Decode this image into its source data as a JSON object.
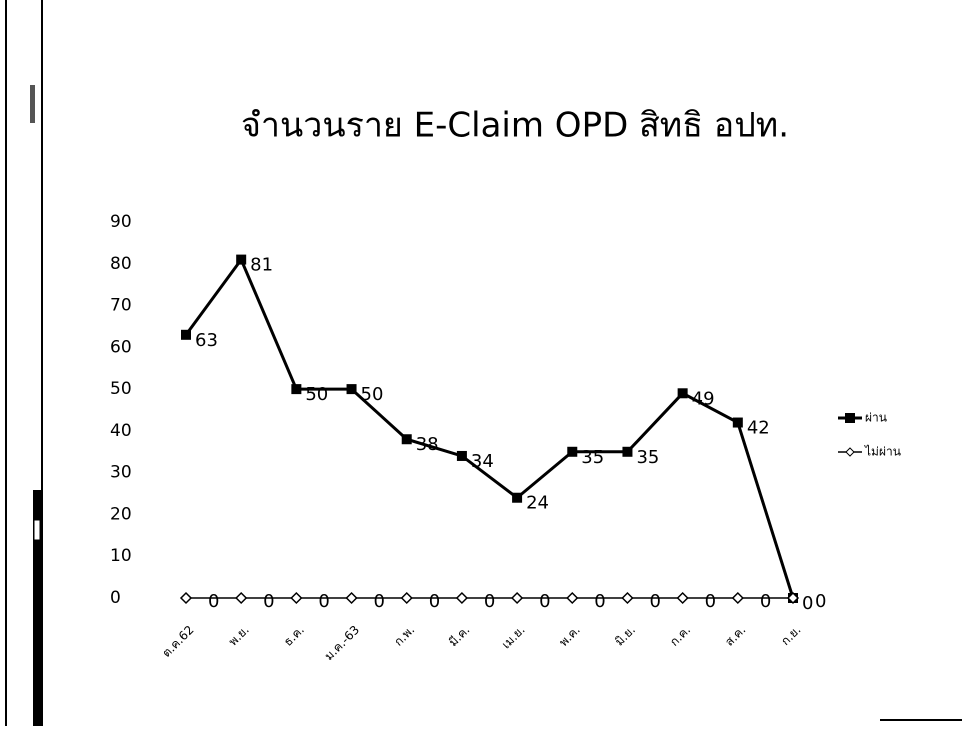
{
  "chart_data": {
    "type": "line",
    "title": "จำนวนราย E-Claim OPD สิทธิ อปท.",
    "categories": [
      "ต.ค.62",
      "พ.ย.",
      "ธ.ค.",
      "ม.ค.-63",
      "ก.พ.",
      "มี.ค.",
      "เม.ย.",
      "พ.ค.",
      "มิ.ย.",
      "ก.ค.",
      "ส.ค.",
      "ก.ย."
    ],
    "series": [
      {
        "name": "ผ่าน",
        "color": "#000000",
        "values": [
          63,
          81,
          50,
          50,
          38,
          34,
          24,
          35,
          35,
          49,
          42,
          0
        ]
      },
      {
        "name": "ไม่ผ่าน",
        "color": "#000000",
        "values": [
          0,
          0,
          0,
          0,
          0,
          0,
          0,
          0,
          0,
          0,
          0,
          0
        ]
      }
    ],
    "ylim": [
      0,
      90
    ],
    "yticks": [
      0,
      10,
      20,
      30,
      40,
      50,
      60,
      70,
      80,
      90
    ],
    "grid": false,
    "legend": "right"
  }
}
